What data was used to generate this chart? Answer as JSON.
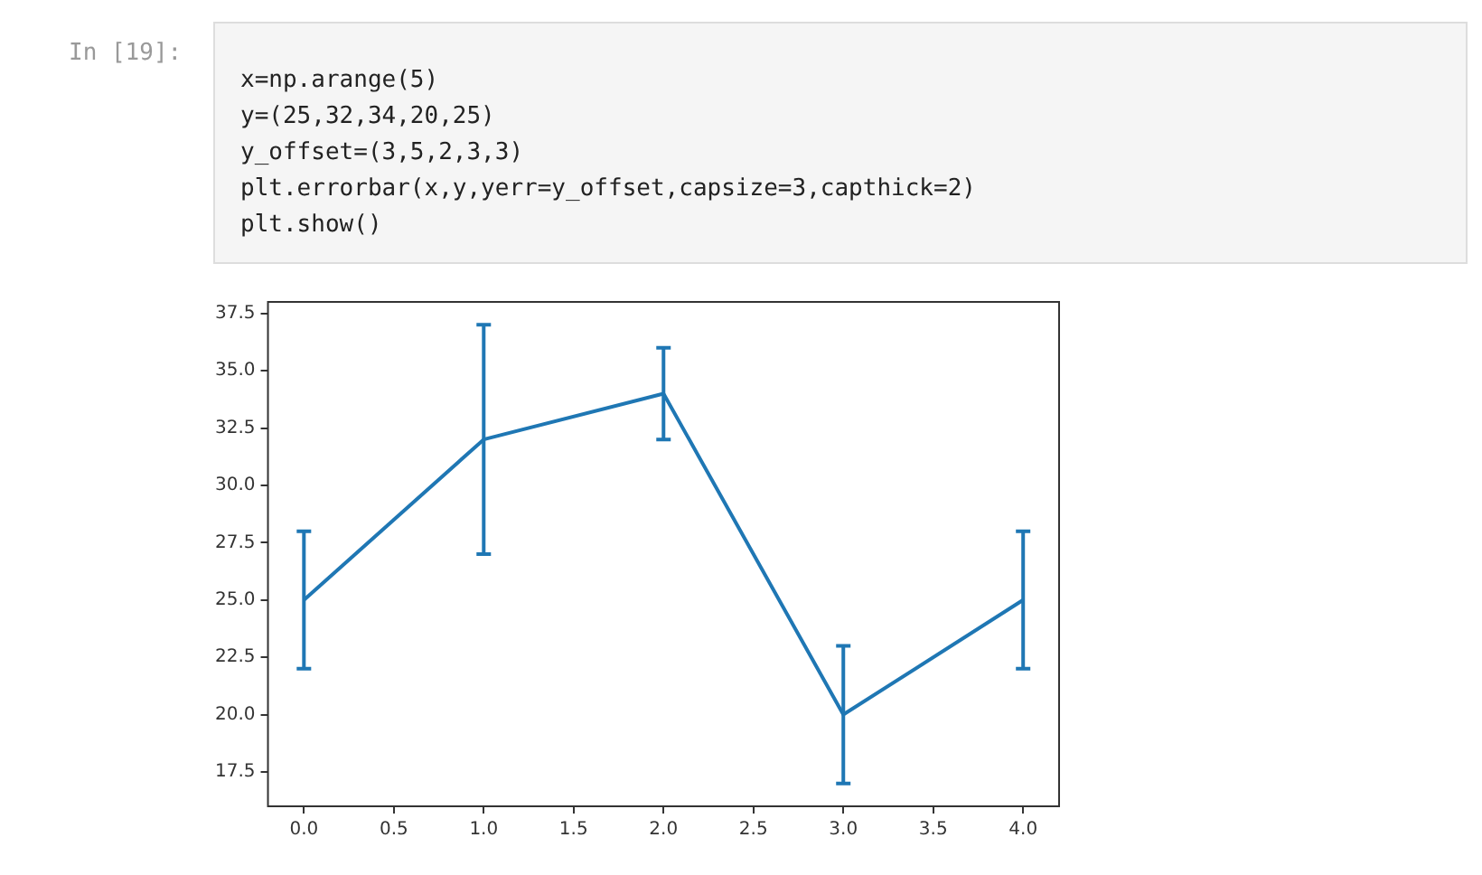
{
  "chart_data": {
    "type": "line",
    "x": [
      0,
      1,
      2,
      3,
      4
    ],
    "series": [
      {
        "color": "#1f77b4",
        "values": [
          25,
          32,
          34,
          20,
          25
        ],
        "errors": [
          3,
          5,
          2,
          3,
          3
        ]
      }
    ],
    "xlim": [
      -0.2,
      4.2
    ],
    "ylim": [
      16,
      38
    ],
    "xticks": [
      {
        "value": 0,
        "label": "0.0"
      },
      {
        "value": 0.5,
        "label": "0.5"
      },
      {
        "value": 1,
        "label": "1.0"
      },
      {
        "value": 1.5,
        "label": "1.5"
      },
      {
        "value": 2,
        "label": "2.0"
      },
      {
        "value": 2.5,
        "label": "2.5"
      },
      {
        "value": 3,
        "label": "3.0"
      },
      {
        "value": 3.5,
        "label": "3.5"
      },
      {
        "value": 4,
        "label": "4.0"
      }
    ],
    "yticks": [
      {
        "value": 17.5,
        "label": "17.5"
      },
      {
        "value": 20,
        "label": "20.0"
      },
      {
        "value": 22.5,
        "label": "22.5"
      },
      {
        "value": 25,
        "label": "25.0"
      },
      {
        "value": 27.5,
        "label": "27.5"
      },
      {
        "value": 30,
        "label": "30.0"
      },
      {
        "value": 32.5,
        "label": "32.5"
      },
      {
        "value": 35,
        "label": "35.0"
      },
      {
        "value": 37.5,
        "label": "37.5"
      }
    ],
    "grid": false,
    "legend": false,
    "marker": "none",
    "line_style": "solid",
    "annotations": [
      "In [19]:",
      "x=np.arange(5)",
      "y=(25,32,34,20,25)",
      "y_offset=(3,5,2,3,3)",
      "plt.errorbar(x,y,yerr=y_offset,capsize=3,capthick=2)",
      "plt.show()"
    ]
  }
}
